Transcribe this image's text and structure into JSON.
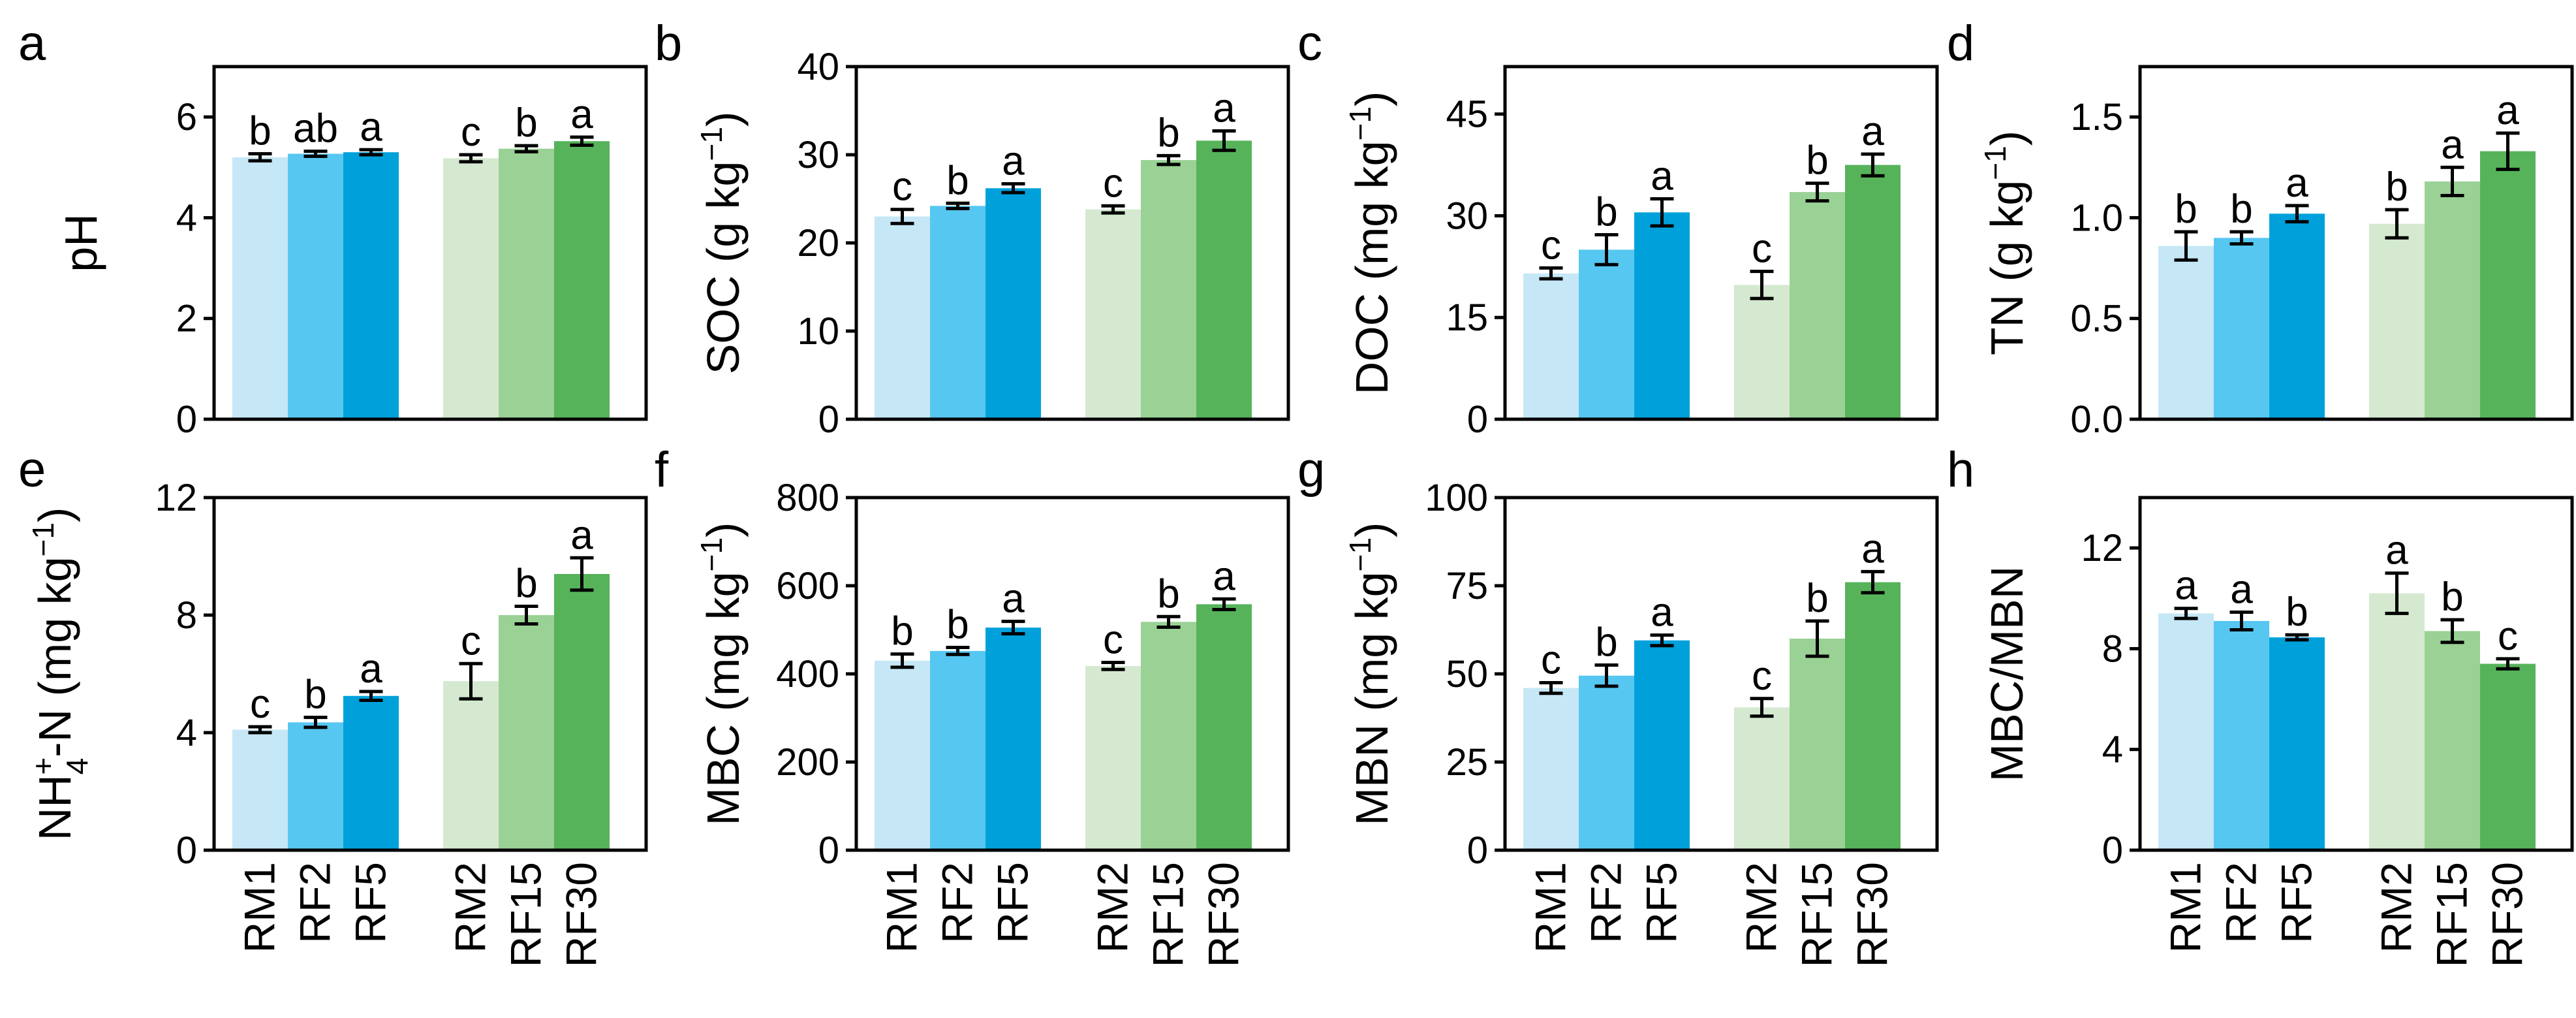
{
  "colors": {
    "RM1": "#c6e7f6",
    "RF2": "#56c7f1",
    "RF5": "#00a1db",
    "RM2": "#d4e9d0",
    "RF15": "#9ad195",
    "RF30": "#56b35a"
  },
  "categories": [
    "RM1",
    "RF2",
    "RF5",
    "RM2",
    "RF15",
    "RF30"
  ],
  "chart_data": [
    {
      "type": "bar",
      "panel": "a",
      "ylabel": "pH",
      "ylabel_sup": "",
      "ylabel_end": "",
      "ylim": [
        0,
        7
      ],
      "yticks": [
        "0",
        "2",
        "4",
        "6"
      ],
      "categories": [
        "RM1",
        "RF2",
        "RF5",
        "RM2",
        "RF15",
        "RF30"
      ],
      "values": [
        5.2,
        5.27,
        5.3,
        5.18,
        5.37,
        5.52
      ],
      "errors": [
        0.07,
        0.05,
        0.05,
        0.07,
        0.06,
        0.08
      ],
      "letters": [
        "b",
        "ab",
        "a",
        "c",
        "b",
        "a"
      ]
    },
    {
      "type": "bar",
      "panel": "b",
      "ylabel": "SOC (g kg",
      "ylabel_sup": "−1",
      "ylabel_end": ")",
      "ylim": [
        0,
        40
      ],
      "yticks": [
        "0",
        "10",
        "20",
        "30",
        "40"
      ],
      "categories": [
        "RM1",
        "RF2",
        "RF5",
        "RM2",
        "RF15",
        "RF30"
      ],
      "values": [
        23.0,
        24.2,
        26.2,
        23.8,
        29.4,
        31.6
      ],
      "errors": [
        0.8,
        0.3,
        0.5,
        0.4,
        0.5,
        1.1
      ],
      "letters": [
        "c",
        "b",
        "a",
        "c",
        "b",
        "a"
      ]
    },
    {
      "type": "bar",
      "panel": "c",
      "ylabel": "DOC (mg kg",
      "ylabel_sup": "−1",
      "ylabel_end": ")",
      "ylim": [
        0,
        52
      ],
      "yticks": [
        "0",
        "15",
        "30",
        "45"
      ],
      "categories": [
        "RM1",
        "RF2",
        "RF5",
        "RM2",
        "RF15",
        "RF30"
      ],
      "values": [
        21.5,
        25.0,
        30.5,
        19.8,
        33.5,
        37.5
      ],
      "errors": [
        0.8,
        2.2,
        2.0,
        2.0,
        1.3,
        1.6
      ],
      "letters": [
        "c",
        "b",
        "a",
        "c",
        "b",
        "a"
      ]
    },
    {
      "type": "bar",
      "panel": "d",
      "ylabel": "TN (g kg",
      "ylabel_sup": "−1",
      "ylabel_end": ")",
      "ylim": [
        0,
        1.75
      ],
      "yticks": [
        "0.0",
        "0.5",
        "1.0",
        "1.5"
      ],
      "categories": [
        "RM1",
        "RF2",
        "RF5",
        "RM2",
        "RF15",
        "RF30"
      ],
      "values": [
        0.86,
        0.9,
        1.02,
        0.97,
        1.18,
        1.33
      ],
      "errors": [
        0.07,
        0.03,
        0.04,
        0.07,
        0.07,
        0.09
      ],
      "letters": [
        "b",
        "b",
        "a",
        "b",
        "a",
        "a"
      ]
    },
    {
      "type": "bar",
      "panel": "e",
      "ylabel": "NH",
      "ylabel_sub": "4",
      "ylabel_sup": "+",
      "ylabel_tail": "-N (mg kg",
      "ylabel_sup2": "−1",
      "ylabel_end": ")",
      "ylim": [
        0,
        12
      ],
      "yticks": [
        "0",
        "4",
        "8",
        "12"
      ],
      "categories": [
        "RM1",
        "RF2",
        "RF5",
        "RM2",
        "RF15",
        "RF30"
      ],
      "values": [
        4.1,
        4.35,
        5.25,
        5.75,
        8.0,
        9.4
      ],
      "errors": [
        0.1,
        0.17,
        0.15,
        0.6,
        0.3,
        0.55
      ],
      "letters": [
        "c",
        "b",
        "a",
        "c",
        "b",
        "a"
      ]
    },
    {
      "type": "bar",
      "panel": "f",
      "ylabel": "MBC (mg  kg",
      "ylabel_sup": "−1",
      "ylabel_end": ")",
      "ylim": [
        0,
        800
      ],
      "yticks": [
        "0",
        "200",
        "400",
        "600",
        "800"
      ],
      "categories": [
        "RM1",
        "RF2",
        "RF5",
        "RM2",
        "RF15",
        "RF30"
      ],
      "values": [
        430,
        452,
        505,
        418,
        518,
        558
      ],
      "errors": [
        15,
        8,
        14,
        8,
        12,
        12
      ],
      "letters": [
        "b",
        "b",
        "a",
        "c",
        "b",
        "a"
      ]
    },
    {
      "type": "bar",
      "panel": "g",
      "ylabel": "MBN (mg kg",
      "ylabel_sup": "−1",
      "ylabel_end": ")",
      "ylim": [
        0,
        100
      ],
      "yticks": [
        "0",
        "25",
        "50",
        "75",
        "100"
      ],
      "categories": [
        "RM1",
        "RF2",
        "RF5",
        "RM2",
        "RF15",
        "RF30"
      ],
      "values": [
        46,
        49.5,
        59.5,
        40.5,
        60,
        76
      ],
      "errors": [
        1.5,
        3,
        1.5,
        2.5,
        5,
        3
      ],
      "letters": [
        "c",
        "b",
        "a",
        "c",
        "b",
        "a"
      ]
    },
    {
      "type": "bar",
      "panel": "h",
      "ylabel": "MBC/MBN",
      "ylabel_sup": "",
      "ylabel_end": "",
      "ylim": [
        0,
        14
      ],
      "yticks": [
        "0",
        "4",
        "8",
        "12"
      ],
      "categories": [
        "RM1",
        "RF2",
        "RF5",
        "RM2",
        "RF15",
        "RF30"
      ],
      "values": [
        9.4,
        9.1,
        8.45,
        10.2,
        8.7,
        7.4
      ],
      "errors": [
        0.2,
        0.35,
        0.1,
        0.8,
        0.45,
        0.2
      ],
      "letters": [
        "a",
        "a",
        "b",
        "a",
        "b",
        "c"
      ]
    }
  ]
}
